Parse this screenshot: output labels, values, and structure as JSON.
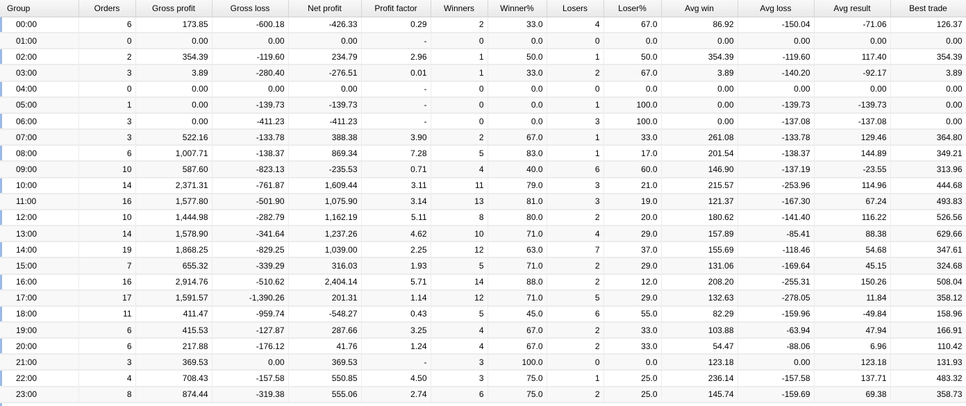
{
  "table": {
    "columns": [
      "Group",
      "Orders",
      "Gross profit",
      "Gross loss",
      "Net profit",
      "Profit factor",
      "Winners",
      "Winner%",
      "Losers",
      "Loser%",
      "Avg win",
      "Avg loss",
      "Avg result",
      "Best trade"
    ],
    "rows": [
      [
        "00:00",
        "6",
        "173.85",
        "-600.18",
        "-426.33",
        "0.29",
        "2",
        "33.0",
        "4",
        "67.0",
        "86.92",
        "-150.04",
        "-71.06",
        "126.37"
      ],
      [
        "01:00",
        "0",
        "0.00",
        "0.00",
        "0.00",
        "-",
        "0",
        "0.0",
        "0",
        "0.0",
        "0.00",
        "0.00",
        "0.00",
        "0.00"
      ],
      [
        "02:00",
        "2",
        "354.39",
        "-119.60",
        "234.79",
        "2.96",
        "1",
        "50.0",
        "1",
        "50.0",
        "354.39",
        "-119.60",
        "117.40",
        "354.39"
      ],
      [
        "03:00",
        "3",
        "3.89",
        "-280.40",
        "-276.51",
        "0.01",
        "1",
        "33.0",
        "2",
        "67.0",
        "3.89",
        "-140.20",
        "-92.17",
        "3.89"
      ],
      [
        "04:00",
        "0",
        "0.00",
        "0.00",
        "0.00",
        "-",
        "0",
        "0.0",
        "0",
        "0.0",
        "0.00",
        "0.00",
        "0.00",
        "0.00"
      ],
      [
        "05:00",
        "1",
        "0.00",
        "-139.73",
        "-139.73",
        "-",
        "0",
        "0.0",
        "1",
        "100.0",
        "0.00",
        "-139.73",
        "-139.73",
        "0.00"
      ],
      [
        "06:00",
        "3",
        "0.00",
        "-411.23",
        "-411.23",
        "-",
        "0",
        "0.0",
        "3",
        "100.0",
        "0.00",
        "-137.08",
        "-137.08",
        "0.00"
      ],
      [
        "07:00",
        "3",
        "522.16",
        "-133.78",
        "388.38",
        "3.90",
        "2",
        "67.0",
        "1",
        "33.0",
        "261.08",
        "-133.78",
        "129.46",
        "364.80"
      ],
      [
        "08:00",
        "6",
        "1,007.71",
        "-138.37",
        "869.34",
        "7.28",
        "5",
        "83.0",
        "1",
        "17.0",
        "201.54",
        "-138.37",
        "144.89",
        "349.21"
      ],
      [
        "09:00",
        "10",
        "587.60",
        "-823.13",
        "-235.53",
        "0.71",
        "4",
        "40.0",
        "6",
        "60.0",
        "146.90",
        "-137.19",
        "-23.55",
        "313.96"
      ],
      [
        "10:00",
        "14",
        "2,371.31",
        "-761.87",
        "1,609.44",
        "3.11",
        "11",
        "79.0",
        "3",
        "21.0",
        "215.57",
        "-253.96",
        "114.96",
        "444.68"
      ],
      [
        "11:00",
        "16",
        "1,577.80",
        "-501.90",
        "1,075.90",
        "3.14",
        "13",
        "81.0",
        "3",
        "19.0",
        "121.37",
        "-167.30",
        "67.24",
        "493.83"
      ],
      [
        "12:00",
        "10",
        "1,444.98",
        "-282.79",
        "1,162.19",
        "5.11",
        "8",
        "80.0",
        "2",
        "20.0",
        "180.62",
        "-141.40",
        "116.22",
        "526.56"
      ],
      [
        "13:00",
        "14",
        "1,578.90",
        "-341.64",
        "1,237.26",
        "4.62",
        "10",
        "71.0",
        "4",
        "29.0",
        "157.89",
        "-85.41",
        "88.38",
        "629.66"
      ],
      [
        "14:00",
        "19",
        "1,868.25",
        "-829.25",
        "1,039.00",
        "2.25",
        "12",
        "63.0",
        "7",
        "37.0",
        "155.69",
        "-118.46",
        "54.68",
        "347.61"
      ],
      [
        "15:00",
        "7",
        "655.32",
        "-339.29",
        "316.03",
        "1.93",
        "5",
        "71.0",
        "2",
        "29.0",
        "131.06",
        "-169.64",
        "45.15",
        "324.68"
      ],
      [
        "16:00",
        "16",
        "2,914.76",
        "-510.62",
        "2,404.14",
        "5.71",
        "14",
        "88.0",
        "2",
        "12.0",
        "208.20",
        "-255.31",
        "150.26",
        "508.04"
      ],
      [
        "17:00",
        "17",
        "1,591.57",
        "-1,390.26",
        "201.31",
        "1.14",
        "12",
        "71.0",
        "5",
        "29.0",
        "132.63",
        "-278.05",
        "11.84",
        "358.12"
      ],
      [
        "18:00",
        "11",
        "411.47",
        "-959.74",
        "-548.27",
        "0.43",
        "5",
        "45.0",
        "6",
        "55.0",
        "82.29",
        "-159.96",
        "-49.84",
        "158.96"
      ],
      [
        "19:00",
        "6",
        "415.53",
        "-127.87",
        "287.66",
        "3.25",
        "4",
        "67.0",
        "2",
        "33.0",
        "103.88",
        "-63.94",
        "47.94",
        "166.91"
      ],
      [
        "20:00",
        "6",
        "217.88",
        "-176.12",
        "41.76",
        "1.24",
        "4",
        "67.0",
        "2",
        "33.0",
        "54.47",
        "-88.06",
        "6.96",
        "110.42"
      ],
      [
        "21:00",
        "3",
        "369.53",
        "0.00",
        "369.53",
        "-",
        "3",
        "100.0",
        "0",
        "0.0",
        "123.18",
        "0.00",
        "123.18",
        "131.93"
      ],
      [
        "22:00",
        "4",
        "708.43",
        "-157.58",
        "550.85",
        "4.50",
        "3",
        "75.0",
        "1",
        "25.0",
        "236.14",
        "-157.58",
        "137.71",
        "483.32"
      ],
      [
        "23:00",
        "8",
        "874.44",
        "-319.38",
        "555.06",
        "2.74",
        "6",
        "75.0",
        "2",
        "25.0",
        "145.74",
        "-159.69",
        "69.38",
        "358.73"
      ]
    ]
  },
  "colors": {
    "left_accent": "#9ab9e6",
    "alt_row": "#f8f8f8",
    "header_bg": "#efefef"
  }
}
